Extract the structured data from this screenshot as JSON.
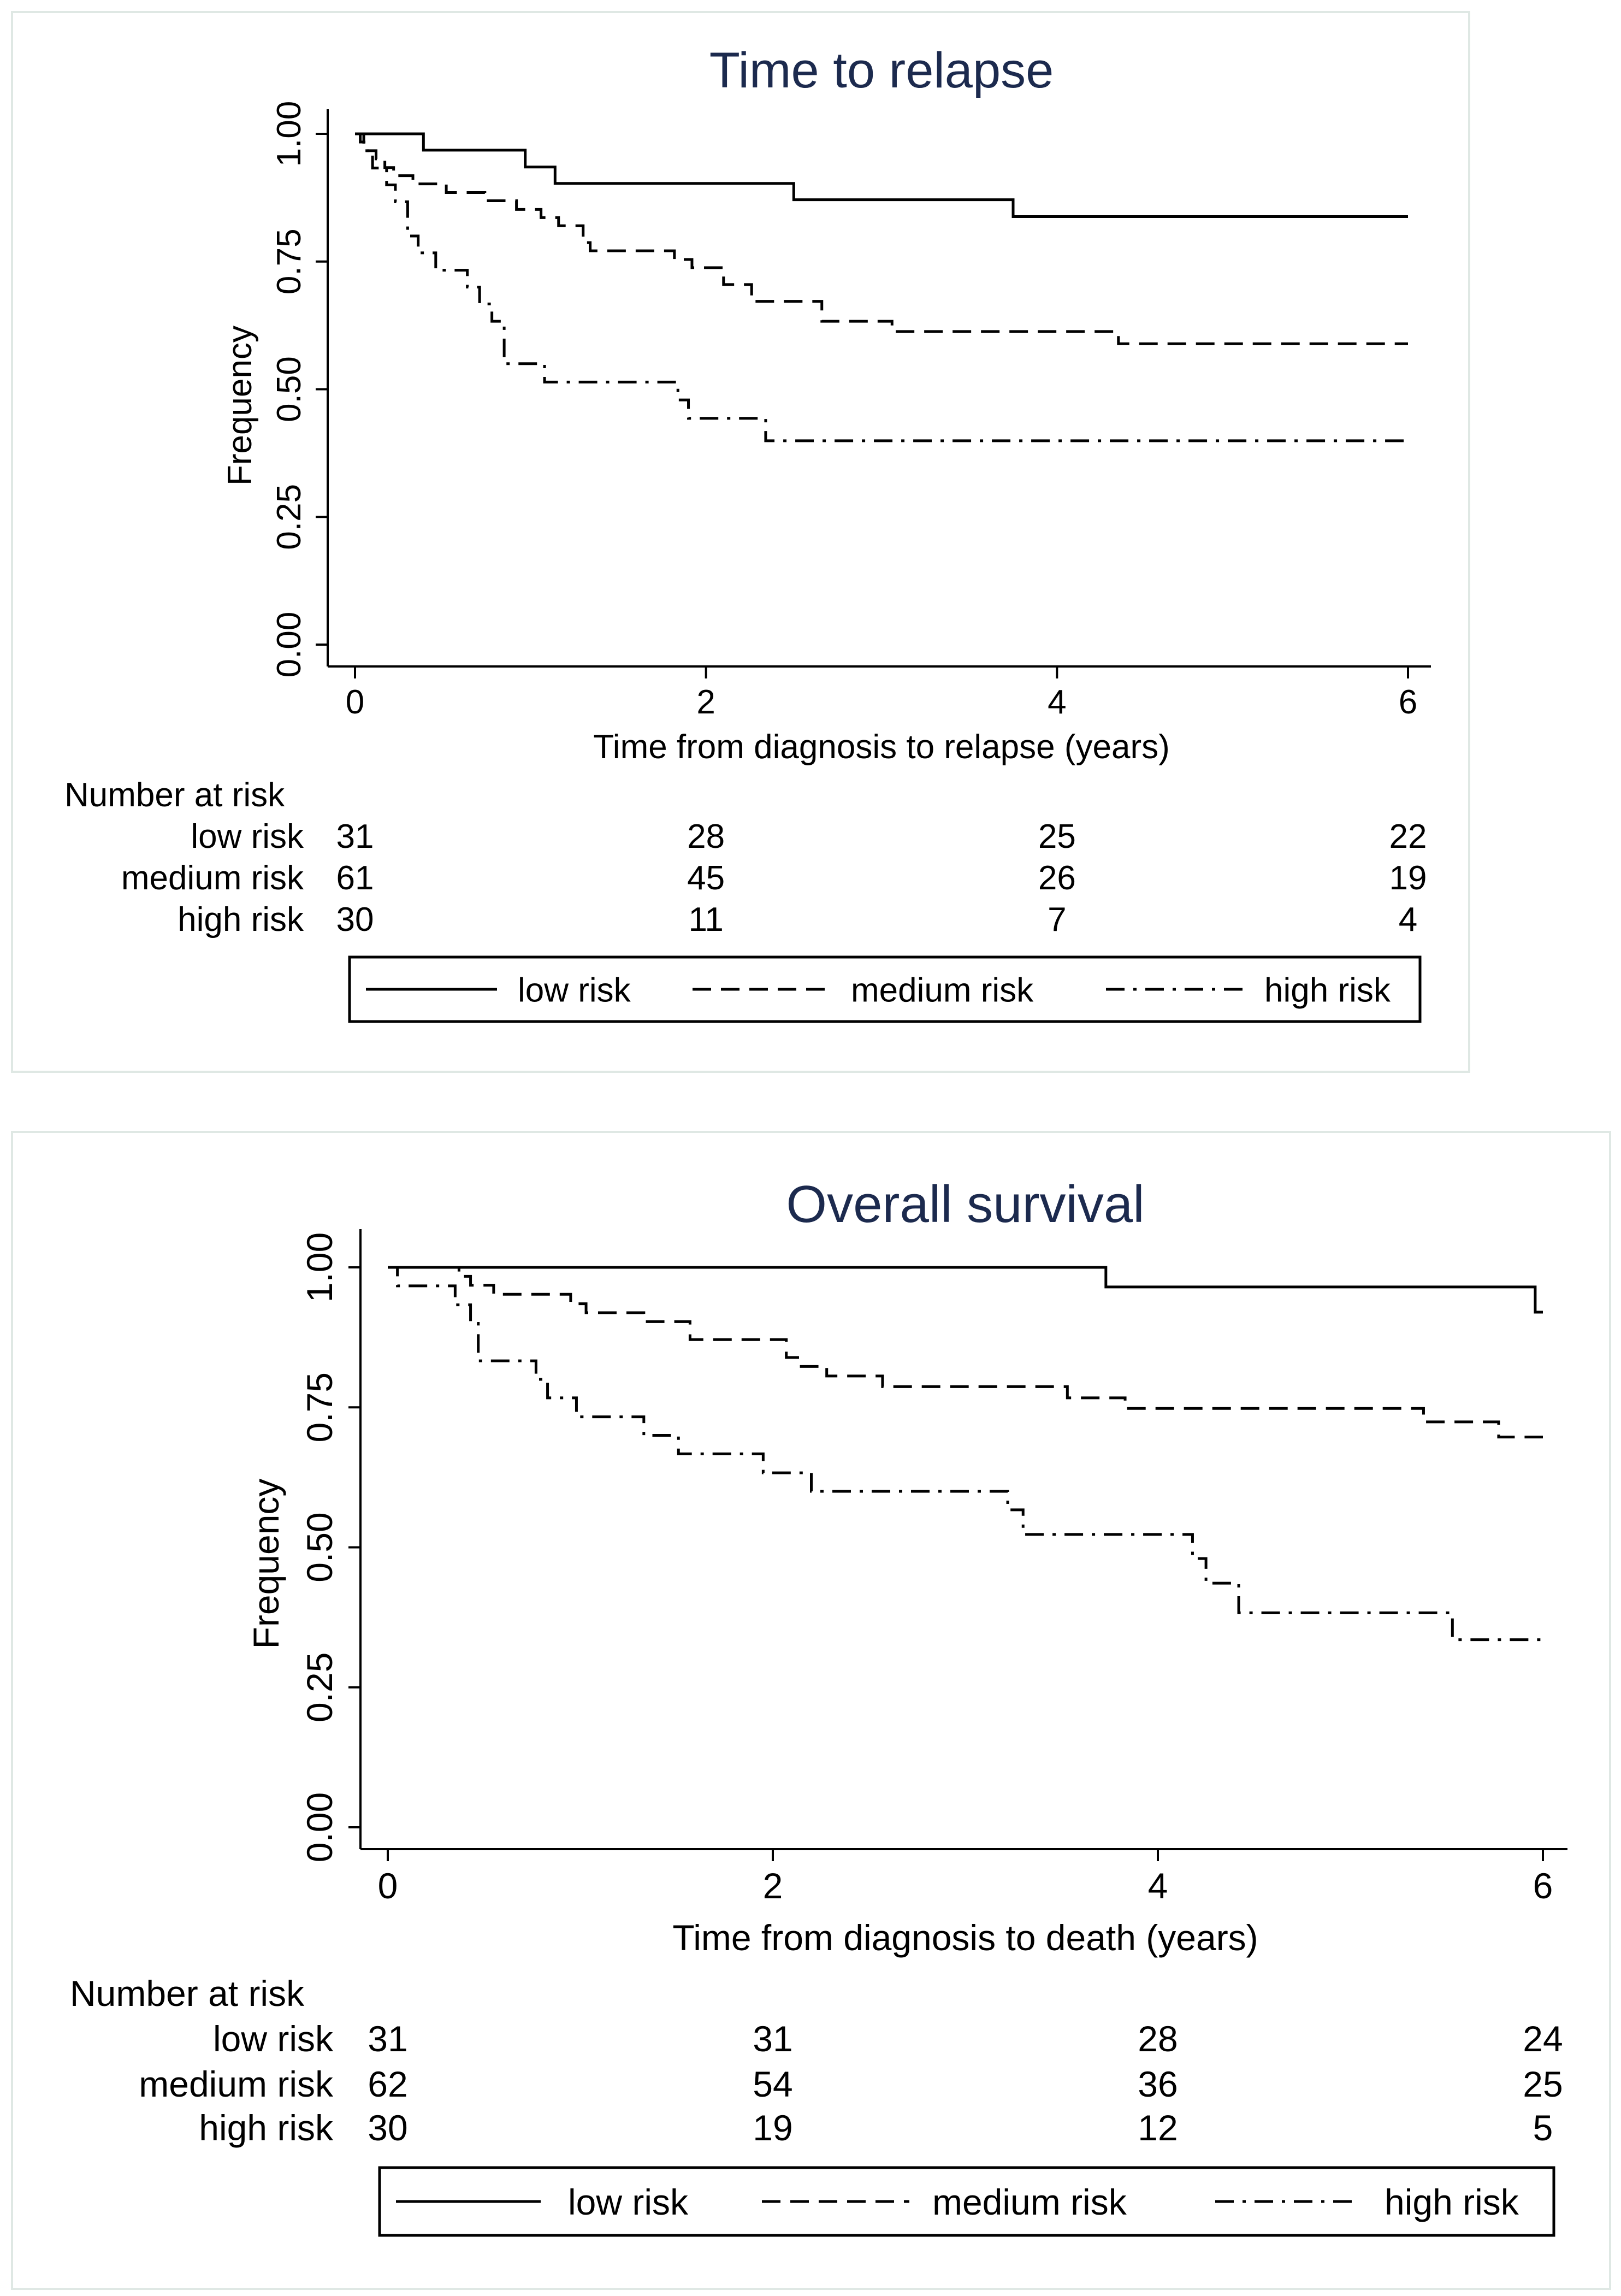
{
  "chart_data": [
    {
      "type": "line",
      "subtype": "kaplan-meier step",
      "title": "Time to relapse",
      "title_color": "#1c2a4e",
      "xlabel": "Time from diagnosis to relapse (years)",
      "ylabel": "Frequency",
      "xlim": [
        0,
        6
      ],
      "ylim": [
        0,
        1
      ],
      "x_ticks": [
        "0",
        "2",
        "4",
        "6"
      ],
      "y_ticks": [
        "0.00",
        "0.25",
        "0.50",
        "0.75",
        "1.00"
      ],
      "grid": false,
      "series": [
        {
          "name": "low risk",
          "style": "solid",
          "x": [
            0,
            0.39,
            0.97,
            1.14,
            2.5,
            3.75,
            6.0
          ],
          "y": [
            1.0,
            0.968,
            0.935,
            0.903,
            0.871,
            0.838,
            0.838
          ]
        },
        {
          "name": "medium risk",
          "style": "dashed",
          "x": [
            0,
            0.03,
            0.07,
            0.12,
            0.17,
            0.22,
            0.33,
            0.52,
            0.74,
            0.92,
            1.06,
            1.16,
            1.3,
            1.34,
            1.82,
            1.92,
            2.1,
            2.26,
            2.66,
            3.06,
            4.35,
            6.0
          ],
          "y": [
            1.0,
            0.984,
            0.967,
            0.951,
            0.934,
            0.918,
            0.902,
            0.885,
            0.869,
            0.852,
            0.836,
            0.82,
            0.787,
            0.771,
            0.754,
            0.738,
            0.705,
            0.672,
            0.633,
            0.613,
            0.589,
            0.589
          ]
        },
        {
          "name": "high risk",
          "style": "dash-dot",
          "x": [
            0,
            0.05,
            0.1,
            0.18,
            0.23,
            0.3,
            0.36,
            0.46,
            0.64,
            0.71,
            0.78,
            0.85,
            1.08,
            1.84,
            1.9,
            2.34,
            6.0
          ],
          "y": [
            1.0,
            0.967,
            0.933,
            0.9,
            0.867,
            0.8,
            0.767,
            0.733,
            0.7,
            0.667,
            0.633,
            0.55,
            0.514,
            0.479,
            0.443,
            0.399,
            0.399
          ]
        }
      ],
      "number_at_risk": {
        "title": "Number at risk",
        "times": [
          "0",
          "2",
          "4",
          "6"
        ],
        "rows": [
          {
            "label": "low risk",
            "counts": [
              "31",
              "28",
              "25",
              "22"
            ]
          },
          {
            "label": "medium risk",
            "counts": [
              "61",
              "45",
              "26",
              "19"
            ]
          },
          {
            "label": "high risk",
            "counts": [
              "30",
              "11",
              "7",
              "4"
            ]
          }
        ]
      },
      "legend": {
        "position": "bottom",
        "entries": [
          "low risk",
          "medium risk",
          "high risk"
        ]
      }
    },
    {
      "type": "line",
      "subtype": "kaplan-meier step",
      "title": "Overall survival",
      "title_color": "#1c2a4e",
      "xlabel": "Time from diagnosis to death (years)",
      "ylabel": "Frequency",
      "xlim": [
        0,
        6
      ],
      "ylim": [
        0,
        1
      ],
      "x_ticks": [
        "0",
        "2",
        "4",
        "6"
      ],
      "y_ticks": [
        "0.00",
        "0.25",
        "0.50",
        "0.75",
        "1.00"
      ],
      "grid": false,
      "series": [
        {
          "name": "low risk",
          "style": "solid",
          "x": [
            0,
            3.73,
            5.96,
            6.0
          ],
          "y": [
            1.0,
            0.965,
            0.92,
            0.92
          ]
        },
        {
          "name": "medium risk",
          "style": "dashed",
          "x": [
            0,
            0.37,
            0.43,
            0.55,
            0.95,
            1.03,
            1.33,
            1.57,
            2.07,
            2.14,
            2.28,
            2.57,
            3.53,
            3.83,
            5.38,
            5.77,
            6.0
          ],
          "y": [
            1.0,
            0.984,
            0.968,
            0.952,
            0.935,
            0.919,
            0.903,
            0.871,
            0.839,
            0.823,
            0.806,
            0.787,
            0.767,
            0.748,
            0.724,
            0.697,
            0.697
          ]
        },
        {
          "name": "high risk",
          "style": "dash-dot",
          "x": [
            0,
            0.05,
            0.35,
            0.43,
            0.47,
            0.77,
            0.83,
            0.98,
            1.33,
            1.51,
            1.95,
            2.03,
            2.2,
            3.22,
            3.3,
            4.18,
            4.25,
            4.42,
            5.47,
            5.53,
            6.0
          ],
          "y": [
            1.0,
            0.967,
            0.933,
            0.9,
            0.833,
            0.8,
            0.767,
            0.733,
            0.7,
            0.667,
            0.633,
            0.633,
            0.6,
            0.567,
            0.523,
            0.48,
            0.436,
            0.383,
            0.383,
            0.335,
            0.335
          ]
        }
      ],
      "number_at_risk": {
        "title": "Number at risk",
        "times": [
          "0",
          "2",
          "4",
          "6"
        ],
        "rows": [
          {
            "label": "low risk",
            "counts": [
              "31",
              "31",
              "28",
              "24"
            ]
          },
          {
            "label": "medium risk",
            "counts": [
              "62",
              "54",
              "36",
              "25"
            ]
          },
          {
            "label": "high risk",
            "counts": [
              "30",
              "19",
              "12",
              "5"
            ]
          }
        ]
      },
      "legend": {
        "position": "bottom",
        "entries": [
          "low risk",
          "medium risk",
          "high risk"
        ]
      }
    }
  ]
}
